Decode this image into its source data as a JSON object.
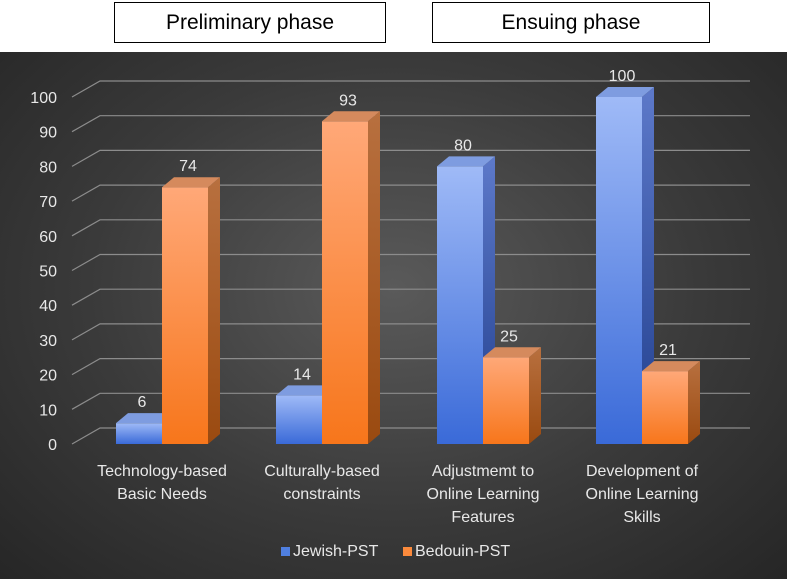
{
  "phases": {
    "preliminary": "Preliminary phase",
    "ensuing": "Ensuing phase"
  },
  "colors": {
    "jewish": "#4f7fe0",
    "bedouin": "#fb8a3c",
    "grid": "#8c8c8c",
    "text": "#e8e8e8"
  },
  "chart_data": {
    "type": "bar",
    "title": "",
    "xlabel": "",
    "ylabel": "",
    "ylim": [
      0,
      100
    ],
    "yticks": [
      0,
      10,
      20,
      30,
      40,
      50,
      60,
      70,
      80,
      90,
      100
    ],
    "categories": [
      [
        "Technology-based",
        "Basic Needs"
      ],
      [
        "Culturally-based",
        "constraints"
      ],
      [
        "Adjustmemt to",
        "Online Learning",
        "Features"
      ],
      [
        "Development of",
        "Online Learning",
        "Skills"
      ]
    ],
    "series": [
      {
        "name": "Jewish-PST",
        "values": [
          6,
          14,
          80,
          100
        ]
      },
      {
        "name": "Bedouin-PST",
        "values": [
          74,
          93,
          25,
          21
        ]
      }
    ],
    "legend_position": "bottom"
  }
}
